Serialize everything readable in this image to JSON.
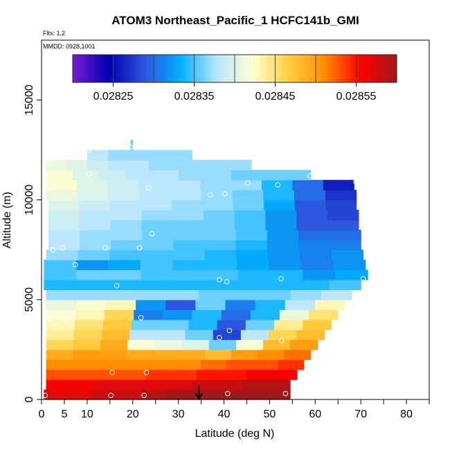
{
  "chart_data": {
    "type": "heatmap",
    "title": "ATOM3 Northeast_Pacific_1 HCFC141b_GMI",
    "info_lines": [
      "Flts: 1,2",
      "MMDD: 0928,1001"
    ],
    "xlabel": "Latitude (deg N)",
    "ylabel": "Altitude (m)",
    "xlim": [
      0,
      85
    ],
    "ylim": [
      0,
      18000
    ],
    "x_ticks": [
      0,
      5,
      10,
      20,
      30,
      40,
      50,
      60,
      70,
      80
    ],
    "x_minor_ticks": [
      15,
      25,
      35,
      45,
      55,
      65,
      75,
      85
    ],
    "y_ticks": [
      0,
      5000,
      10000,
      15000
    ],
    "colorbar": {
      "range": [
        0.0282,
        0.0286
      ],
      "tick_values": [
        0.02825,
        0.02835,
        0.02845,
        0.02855
      ],
      "tick_labels": [
        "0.02825",
        "0.02835",
        "0.02845",
        "0.02855"
      ],
      "colors": [
        "#7a1bd6",
        "#0000b0",
        "#2d55de",
        "#00b0ff",
        "#b8e6ff",
        "#ffffd0",
        "#ffd040",
        "#ff8c00",
        "#ff0000",
        "#a01818"
      ]
    },
    "altitude_layers": [
      {
        "alt": 250,
        "lat_min": 0.5,
        "lat_max": 54.5,
        "values": [
          0.02857,
          0.02857,
          0.02858,
          0.02858,
          0.02859,
          0.0286,
          0.02861,
          0.02862,
          0.02862,
          0.02863
        ]
      },
      {
        "alt": 750,
        "lat_min": 1.0,
        "lat_max": 54.5,
        "values": [
          0.02856,
          0.02856,
          0.02857,
          0.02857,
          0.02857,
          0.02857,
          0.02858,
          0.02858,
          0.02859,
          0.02859
        ]
      },
      {
        "alt": 1250,
        "lat_min": 1.0,
        "lat_max": 56.0,
        "values": [
          0.02853,
          0.02853,
          0.02853,
          0.02853,
          0.02854,
          0.02854,
          0.02855,
          0.02855,
          0.02856,
          0.02856
        ]
      },
      {
        "alt": 1750,
        "lat_min": 1.0,
        "lat_max": 57.5,
        "values": [
          0.02851,
          0.02851,
          0.02851,
          0.02851,
          0.02851,
          0.02851,
          0.02852,
          0.02853,
          0.02853,
          0.02854
        ]
      },
      {
        "alt": 2250,
        "lat_min": 1.0,
        "lat_max": 59.0,
        "values": [
          0.02849,
          0.0285,
          0.0285,
          0.02849,
          0.02849,
          0.02849,
          0.02848,
          0.0285,
          0.02851,
          0.02852
        ]
      },
      {
        "alt": 2750,
        "lat_min": 1.0,
        "lat_max": 60.5,
        "values": [
          0.02846,
          0.02847,
          0.02849,
          0.02842,
          0.02841,
          0.0284,
          0.02836,
          0.02842,
          0.02848,
          0.0285
        ]
      },
      {
        "alt": 3250,
        "lat_min": 1.0,
        "lat_max": 62.0,
        "values": [
          0.02844,
          0.02846,
          0.02848,
          0.02838,
          0.02838,
          0.02836,
          0.02828,
          0.02838,
          0.02846,
          0.02848
        ]
      },
      {
        "alt": 3750,
        "lat_min": 1.0,
        "lat_max": 63.5,
        "values": [
          0.02843,
          0.02845,
          0.02847,
          0.02836,
          0.02836,
          0.02834,
          0.02829,
          0.02836,
          0.02844,
          0.02847
        ]
      },
      {
        "alt": 4250,
        "lat_min": 1.0,
        "lat_max": 65.0,
        "values": [
          0.02842,
          0.02843,
          0.02846,
          0.02831,
          0.02832,
          0.02834,
          0.0283,
          0.02834,
          0.02841,
          0.02845
        ]
      },
      {
        "alt": 4750,
        "lat_min": 1.0,
        "lat_max": 66.5,
        "values": [
          0.02841,
          0.02842,
          0.02843,
          0.02832,
          0.02829,
          0.02836,
          0.02831,
          0.02834,
          0.02838,
          0.02843
        ]
      },
      {
        "alt": 5250,
        "lat_min": 1.0,
        "lat_max": 68.0,
        "values": [
          0.02837,
          0.02837,
          0.02837,
          0.02837,
          0.02837,
          0.02836,
          0.02836,
          0.02836,
          0.02837,
          0.02838
        ]
      },
      {
        "alt": 5750,
        "lat_min": 0.5,
        "lat_max": 70.0,
        "values": [
          0.02834,
          0.02834,
          0.02834,
          0.02834,
          0.02834,
          0.02834,
          0.02834,
          0.02834,
          0.02834,
          0.02835
        ]
      },
      {
        "alt": 6250,
        "lat_min": 0.5,
        "lat_max": 71.5,
        "values": [
          0.02835,
          0.02836,
          0.02836,
          0.02835,
          0.02835,
          0.02835,
          0.02834,
          0.02834,
          0.02832,
          0.02833
        ]
      },
      {
        "alt": 6750,
        "lat_min": 0.5,
        "lat_max": 71.0,
        "values": [
          0.02835,
          0.02832,
          0.02833,
          0.02835,
          0.02834,
          0.02834,
          0.02833,
          0.02832,
          0.02831,
          0.02832
        ]
      },
      {
        "alt": 7250,
        "lat_min": 1.0,
        "lat_max": 70.5,
        "values": [
          0.02837,
          0.02836,
          0.02835,
          0.02835,
          0.02835,
          0.02834,
          0.02833,
          0.02832,
          0.02831,
          0.02832
        ]
      },
      {
        "alt": 7750,
        "lat_min": 1.5,
        "lat_max": 70.0,
        "values": [
          0.02838,
          0.02837,
          0.02836,
          0.02836,
          0.02835,
          0.02835,
          0.02834,
          0.02832,
          0.02831,
          0.02831
        ]
      },
      {
        "alt": 8250,
        "lat_min": 1.5,
        "lat_max": 70.0,
        "values": [
          0.02838,
          0.02837,
          0.02837,
          0.02836,
          0.02836,
          0.02836,
          0.02835,
          0.02832,
          0.0283,
          0.0283
        ]
      },
      {
        "alt": 8750,
        "lat_min": 1.5,
        "lat_max": 69.5,
        "values": [
          0.02839,
          0.02838,
          0.02837,
          0.02836,
          0.02836,
          0.02836,
          0.02835,
          0.02832,
          0.02829,
          0.02829
        ]
      },
      {
        "alt": 9250,
        "lat_min": 1.5,
        "lat_max": 69.5,
        "values": [
          0.02839,
          0.02838,
          0.02838,
          0.02837,
          0.02837,
          0.02836,
          0.02835,
          0.02832,
          0.02829,
          0.02828
        ]
      },
      {
        "alt": 9750,
        "lat_min": 1.5,
        "lat_max": 69.0,
        "values": [
          0.0284,
          0.02839,
          0.02838,
          0.02838,
          0.02837,
          0.02837,
          0.02836,
          0.02833,
          0.02829,
          0.02828
        ]
      },
      {
        "alt": 10250,
        "lat_min": 1.0,
        "lat_max": 69.0,
        "values": [
          0.02841,
          0.0284,
          0.02839,
          0.02838,
          0.02838,
          0.02837,
          0.02836,
          0.02834,
          0.0283,
          0.02827
        ]
      },
      {
        "alt": 10750,
        "lat_min": 1.0,
        "lat_max": 68.5,
        "values": [
          0.02842,
          0.0284,
          0.02839,
          0.02838,
          0.02838,
          0.02837,
          0.02837,
          0.02834,
          0.0283,
          0.02826
        ]
      },
      {
        "alt": 11250,
        "lat_min": 1.0,
        "lat_max": 59.0,
        "values": [
          0.02842,
          0.0284,
          0.02839,
          0.02838,
          0.02838,
          0.02837,
          0.02837,
          0.02836,
          0.02836,
          0.02836
        ]
      },
      {
        "alt": 11750,
        "lat_min": 1.0,
        "lat_max": 46.0,
        "values": [
          0.02841,
          0.0284,
          0.02839,
          0.02838,
          0.02838,
          0.02837,
          0.02837,
          0.02837,
          0.02837,
          0.02837
        ]
      },
      {
        "alt": 12250,
        "lat_min": 10.0,
        "lat_max": 33.0,
        "values": [
          0.02838,
          0.02838,
          0.02837,
          0.02837,
          0.02837,
          0.02837,
          0.02837,
          0.02837,
          0.02837,
          0.02837
        ]
      },
      {
        "alt": 12750,
        "lat_min": 19.5,
        "lat_max": 20.0,
        "values": [
          0.02836,
          0.02836,
          0.02836,
          0.02836,
          0.02836,
          0.02836,
          0.02836,
          0.02836,
          0.02836,
          0.02836
        ]
      }
    ],
    "sample_points": [
      {
        "x": 0.8,
        "y": 200
      },
      {
        "x": 15.2,
        "y": 200
      },
      {
        "x": 22.5,
        "y": 200
      },
      {
        "x": 53.5,
        "y": 300
      },
      {
        "x": 40.8,
        "y": 300
      },
      {
        "x": 15.5,
        "y": 1350
      },
      {
        "x": 23.0,
        "y": 1350
      },
      {
        "x": 41.2,
        "y": 3450
      },
      {
        "x": 39.0,
        "y": 3100
      },
      {
        "x": 52.6,
        "y": 2950
      },
      {
        "x": 1.8,
        "y": 4050
      },
      {
        "x": 5.2,
        "y": 4000
      },
      {
        "x": 21.8,
        "y": 4100
      },
      {
        "x": 16.5,
        "y": 5700
      },
      {
        "x": 39.0,
        "y": 6000
      },
      {
        "x": 40.6,
        "y": 5900
      },
      {
        "x": 52.5,
        "y": 6050
      },
      {
        "x": 70.5,
        "y": 6050
      },
      {
        "x": 7.4,
        "y": 6750
      },
      {
        "x": 2.5,
        "y": 7500
      },
      {
        "x": 4.6,
        "y": 7600
      },
      {
        "x": 14.0,
        "y": 7600
      },
      {
        "x": 21.5,
        "y": 7600
      },
      {
        "x": 24.2,
        "y": 8300
      },
      {
        "x": 37.0,
        "y": 10250
      },
      {
        "x": 40.2,
        "y": 10300
      },
      {
        "x": 23.5,
        "y": 10600
      },
      {
        "x": 45.2,
        "y": 10850
      },
      {
        "x": 51.8,
        "y": 10750
      },
      {
        "x": 58.9,
        "y": 11200
      },
      {
        "x": 68.9,
        "y": 10900
      },
      {
        "x": 10.4,
        "y": 11300
      },
      {
        "x": 1.8,
        "y": 11900
      },
      {
        "x": 10.3,
        "y": 12500
      },
      {
        "x": 19.5,
        "y": 12650
      }
    ],
    "arrow": {
      "lat": 34.5,
      "label": ""
    }
  }
}
